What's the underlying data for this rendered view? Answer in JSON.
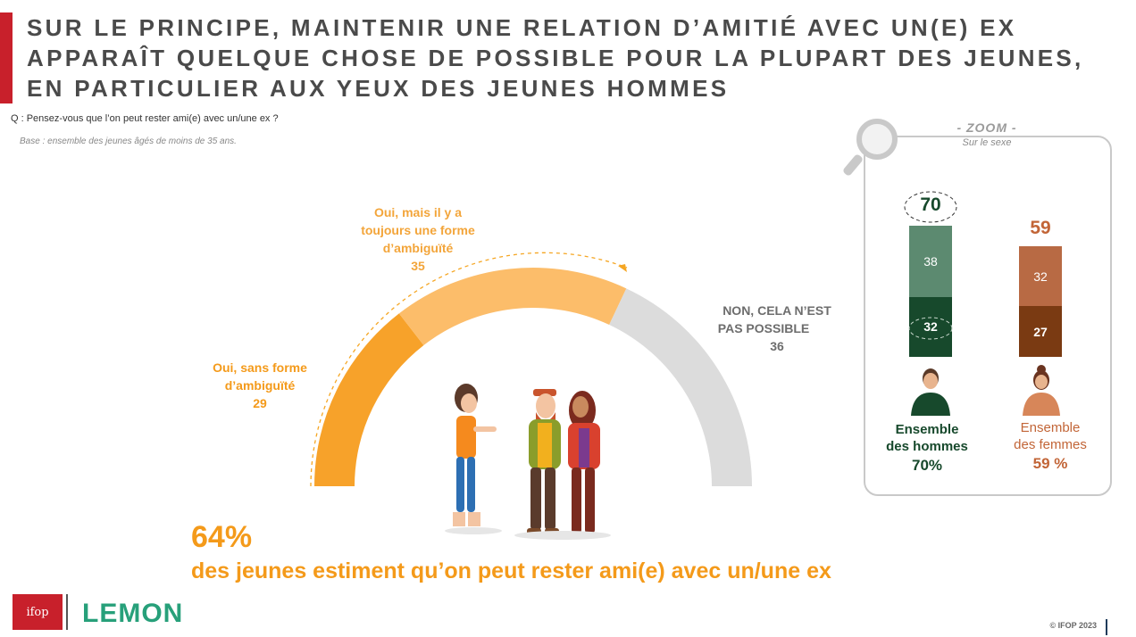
{
  "title": {
    "lines": [
      "SUR LE PRINCIPE, MAINTENIR UNE RELATION D’AMITIÉ AVEC UN(E) EX",
      "APPARAÎT QUELQUE CHOSE DE POSSIBLE POUR LA PLUPART DES JEUNES,",
      "EN PARTICULIER AUX YEUX DES JEUNES HOMMES"
    ]
  },
  "question": "Q : Pensez-vous que l’on peut rester ami(e) avec un/une ex ?",
  "base": "Base : ensemble des jeunes âgés de moins de 35 ans.",
  "gauge": {
    "segments": [
      {
        "label_lines": [
          "Oui, sans forme",
          "d’ambiguïté"
        ],
        "value": 29,
        "color": "#f7a22a"
      },
      {
        "label_lines": [
          "Oui, mais il y a",
          "toujours une forme",
          "d’ambiguïté"
        ],
        "value": 35,
        "color": "#fcbd6a"
      },
      {
        "label_lines": [
          "NON, CELA N’EST",
          "PAS POSSIBLE"
        ],
        "value": 36,
        "color": "#dcdcdc"
      }
    ]
  },
  "headline": {
    "percent": "64%",
    "text": "des jeunes estiment qu’on peut rester ami(e) avec un/une ex"
  },
  "zoom": {
    "title": "- ZOOM -",
    "subtitle": "Sur le sexe",
    "groups": [
      {
        "name_lines": [
          "Ensemble",
          "des hommes"
        ],
        "pct_label": "70%",
        "total": 70,
        "top": 38,
        "bottom": 32,
        "color_top": "#5c8a70",
        "color_bottom": "#17492c",
        "text_color": "#17492c"
      },
      {
        "name_lines": [
          "Ensemble",
          "des femmes"
        ],
        "pct_label": "59 %",
        "total": 59,
        "top": 32,
        "bottom": 27,
        "color_top": "#b86a44",
        "color_bottom": "#7a3a12",
        "text_color": "#c26537"
      }
    ]
  },
  "chart_data": [
    {
      "type": "pie",
      "categories": [
        "Oui, sans forme d’ambiguïté",
        "Oui, mais il y a toujours une forme d’ambiguïté",
        "NON, CELA N’EST PAS POSSIBLE"
      ],
      "values": [
        29,
        35,
        36
      ]
    },
    {
      "type": "bar",
      "categories": [
        "Ensemble des hommes",
        "Ensemble des femmes"
      ],
      "series": [
        {
          "values": [
            32,
            27
          ]
        },
        {
          "values": [
            38,
            32
          ]
        }
      ],
      "totals": [
        70,
        59
      ]
    }
  ],
  "logos": {
    "ifop": "ifop",
    "lemon": "LEMON"
  },
  "footer": "© IFOP 2023"
}
